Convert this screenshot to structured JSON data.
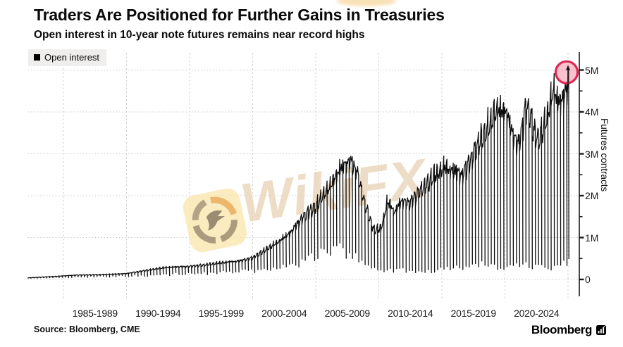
{
  "header": {
    "title": "Traders Are Positioned for Further Gains in Treasuries",
    "subtitle": "Open interest in 10-year note futures remains near record highs"
  },
  "legend": {
    "label": "Open interest",
    "swatch_color": "#000000"
  },
  "watermark": {
    "text": "WikiFX"
  },
  "source": {
    "label": "Source: Bloomberg, CME"
  },
  "branding": {
    "wordmark": "Bloomberg"
  },
  "colors": {
    "line": "#0d0d0d",
    "grid": "#c9c8c5",
    "axis": "#1a1a1a",
    "highlight_stroke": "#dc2850",
    "highlight_fill": "rgba(235,90,120,0.36)",
    "legend_bg": "#efeeec"
  },
  "chart_data": {
    "type": "line",
    "title": "Open interest in 10-year note futures",
    "series_name": "Open interest",
    "ylabel": "Futures contracts",
    "unit": "contracts",
    "ylim_M": [
      0,
      5.2
    ],
    "yticks": [
      {
        "v": 0,
        "label": "0"
      },
      {
        "v": 1,
        "label": "1M"
      },
      {
        "v": 2,
        "label": "2M"
      },
      {
        "v": 3,
        "label": "3M"
      },
      {
        "v": 4,
        "label": "4M"
      },
      {
        "v": 5,
        "label": "5M"
      }
    ],
    "xticks": [
      "1985-1989",
      "1990-1994",
      "1995-1999",
      "2000-2004",
      "2005-2009",
      "2010-2014",
      "2015-2019",
      "2020-2024"
    ],
    "x_range_years": [
      1982.15,
      2025.05
    ],
    "cycle": "quarterly contract-roll sawtooth (4 spikes per year)",
    "envelope_peaks_M": [
      [
        1982.2,
        0.04
      ],
      [
        1984,
        0.07
      ],
      [
        1986,
        0.11
      ],
      [
        1988,
        0.12
      ],
      [
        1990,
        0.15
      ],
      [
        1991,
        0.2
      ],
      [
        1992,
        0.25
      ],
      [
        1993,
        0.3
      ],
      [
        1994,
        0.32
      ],
      [
        1995,
        0.33
      ],
      [
        1996,
        0.36
      ],
      [
        1997,
        0.4
      ],
      [
        1998,
        0.44
      ],
      [
        1999,
        0.47
      ],
      [
        2000,
        0.55
      ],
      [
        2001,
        0.75
      ],
      [
        2002,
        0.95
      ],
      [
        2003,
        1.2
      ],
      [
        2004,
        1.6
      ],
      [
        2005,
        1.85
      ],
      [
        2006,
        2.3
      ],
      [
        2007,
        2.85
      ],
      [
        2007.7,
        3.05
      ],
      [
        2008.3,
        2.7
      ],
      [
        2009,
        1.8
      ],
      [
        2009.6,
        1.25
      ],
      [
        2010.2,
        1.3
      ],
      [
        2010.7,
        2.0
      ],
      [
        2011.2,
        1.7
      ],
      [
        2011.8,
        2.0
      ],
      [
        2012.5,
        1.95
      ],
      [
        2013.3,
        2.25
      ],
      [
        2014.3,
        2.6
      ],
      [
        2015.2,
        2.85
      ],
      [
        2016.2,
        2.75
      ],
      [
        2016.6,
        2.65
      ],
      [
        2017.2,
        3.0
      ],
      [
        2018.0,
        3.5
      ],
      [
        2018.7,
        3.85
      ],
      [
        2019.3,
        4.3
      ],
      [
        2020.1,
        4.25
      ],
      [
        2020.7,
        3.6
      ],
      [
        2021.1,
        3.45
      ],
      [
        2021.7,
        4.4
      ],
      [
        2022.4,
        3.65
      ],
      [
        2022.7,
        3.55
      ],
      [
        2023.3,
        4.05
      ],
      [
        2023.8,
        4.8
      ],
      [
        2024.3,
        4.5
      ],
      [
        2024.7,
        4.7
      ],
      [
        2025.05,
        4.93
      ]
    ],
    "roll_troughs_M": [
      [
        1982,
        0.025
      ],
      [
        1986,
        0.06
      ],
      [
        1990,
        0.08
      ],
      [
        1994,
        0.13
      ],
      [
        1998,
        0.17
      ],
      [
        2000,
        0.2
      ],
      [
        2002,
        0.25
      ],
      [
        2004,
        0.4
      ],
      [
        2005,
        0.55
      ],
      [
        2006,
        0.65
      ],
      [
        2007,
        0.75
      ],
      [
        2008,
        0.6
      ],
      [
        2009,
        0.3
      ],
      [
        2010,
        0.2
      ],
      [
        2012,
        0.22
      ],
      [
        2014,
        0.18
      ],
      [
        2016,
        0.3
      ],
      [
        2018,
        0.35
      ],
      [
        2020,
        0.3
      ],
      [
        2022,
        0.35
      ],
      [
        2024,
        0.3
      ],
      [
        2025,
        0.45
      ]
    ],
    "highlight": {
      "x_year": 2025.0,
      "value_M": 4.93,
      "meaning": "record high circled"
    },
    "legend_position": "top-left",
    "grid": "dotted horizontal at 1M steps, dashed vertical at 5-year steps"
  }
}
